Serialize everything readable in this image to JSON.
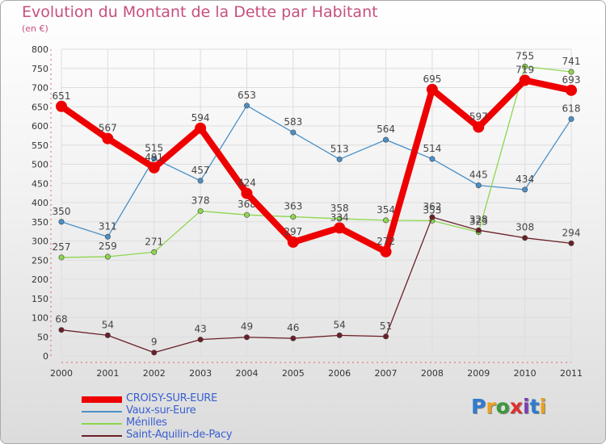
{
  "title": "Evolution du Montant de la Dette par Habitant",
  "subtitle": "(en €)",
  "logo": {
    "text": "Proxiti",
    "letters": [
      "P",
      "r",
      "o",
      "x",
      "i",
      "t",
      "i"
    ],
    "colors": [
      "#2f7ccf",
      "#e8a020",
      "#3a9a3a",
      "#e03030",
      "#7a3fb0",
      "#2f7ccf",
      "#e8a020"
    ]
  },
  "chart_data": {
    "type": "line",
    "x": [
      "2000",
      "2001",
      "2002",
      "2003",
      "2004",
      "2005",
      "2006",
      "2007",
      "2008",
      "2009",
      "2010",
      "2011"
    ],
    "ylim": [
      0,
      800
    ],
    "yticks": [
      "0",
      "50",
      "100",
      "150",
      "200",
      "250",
      "300",
      "350",
      "400",
      "450",
      "500",
      "550",
      "600",
      "650",
      "700",
      "750",
      "800"
    ],
    "grid": true,
    "legend_position": "bottom-left",
    "series": [
      {
        "name": "Vaux-sur-Eure",
        "color": "#4a90c8",
        "values": [
          350,
          311,
          515,
          457,
          653,
          583,
          513,
          564,
          514,
          445,
          434,
          618
        ],
        "labels": [
          "350",
          "311",
          "515",
          "457",
          "653",
          "583",
          "513",
          "564",
          "514",
          "445",
          "434",
          "618"
        ]
      },
      {
        "name": "Ménilles",
        "color": "#8ed64e",
        "values": [
          257,
          259,
          271,
          378,
          368,
          363,
          358,
          354,
          353,
          323,
          755,
          741
        ],
        "labels": [
          "257",
          "259",
          "271",
          "378",
          "368",
          "363",
          "358",
          "354",
          "353",
          "323",
          "755",
          "741"
        ]
      },
      {
        "name": "Saint-Aquilin-de-Pacy",
        "color": "#6b1f28",
        "values": [
          68,
          54,
          9,
          43,
          49,
          46,
          54,
          51,
          362,
          328,
          308,
          294
        ],
        "labels": [
          "68",
          "54",
          "9",
          "43",
          "49",
          "46",
          "54",
          "51",
          "362",
          "328",
          "308",
          "294"
        ]
      },
      {
        "name": "CROISY-SUR-EURE",
        "color": "#ee0000",
        "values": [
          651,
          567,
          491,
          594,
          424,
          297,
          334,
          272,
          695,
          597,
          719,
          693
        ],
        "labels": [
          "651",
          "567",
          "491",
          "594",
          "424",
          "297",
          "334",
          "272",
          "695",
          "597",
          "719",
          "693"
        ]
      }
    ],
    "legend_order": [
      "CROISY-SUR-EURE",
      "Vaux-sur-Eure",
      "Ménilles",
      "Saint-Aquilin-de-Pacy"
    ]
  }
}
